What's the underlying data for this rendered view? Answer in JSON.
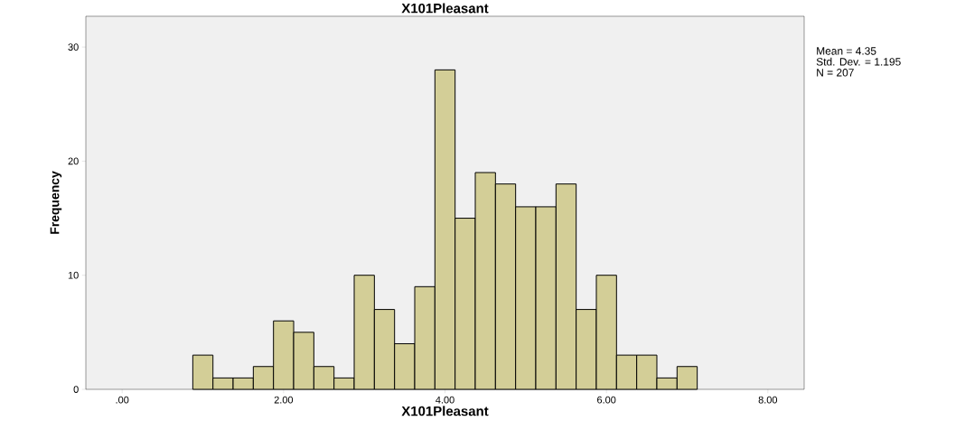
{
  "chart_data": {
    "type": "histogram",
    "title": "X101Pleasant",
    "xlabel": "X101Pleasant",
    "ylabel": "Frequency",
    "bins": [
      0.875,
      1.125,
      1.375,
      1.625,
      1.875,
      2.125,
      2.375,
      2.625,
      2.875,
      3.125,
      3.375,
      3.625,
      3.875,
      4.125,
      4.375,
      4.625,
      4.875,
      5.125,
      5.375,
      5.625,
      5.875,
      6.125,
      6.375,
      6.625,
      6.875,
      7.125
    ],
    "values": [
      3,
      1,
      1,
      2,
      6,
      5,
      2,
      1,
      10,
      7,
      4,
      9,
      28,
      15,
      19,
      18,
      16,
      16,
      18,
      7,
      10,
      3,
      3,
      1,
      2
    ],
    "color": "#d3ce97",
    "xlim": [
      -0.45,
      8.45
    ],
    "ylim": [
      0,
      32.7
    ],
    "xticks": [
      {
        "value": 0,
        "label": ".00"
      },
      {
        "value": 2,
        "label": "2.00"
      },
      {
        "value": 4,
        "label": "4.00"
      },
      {
        "value": 6,
        "label": "6.00"
      },
      {
        "value": 8,
        "label": "8.00"
      }
    ],
    "yticks": [
      0,
      10,
      20,
      30
    ],
    "annotations": [
      "Mean = 4.35",
      "Std. Dev. = 1.195",
      "N = 207"
    ]
  }
}
